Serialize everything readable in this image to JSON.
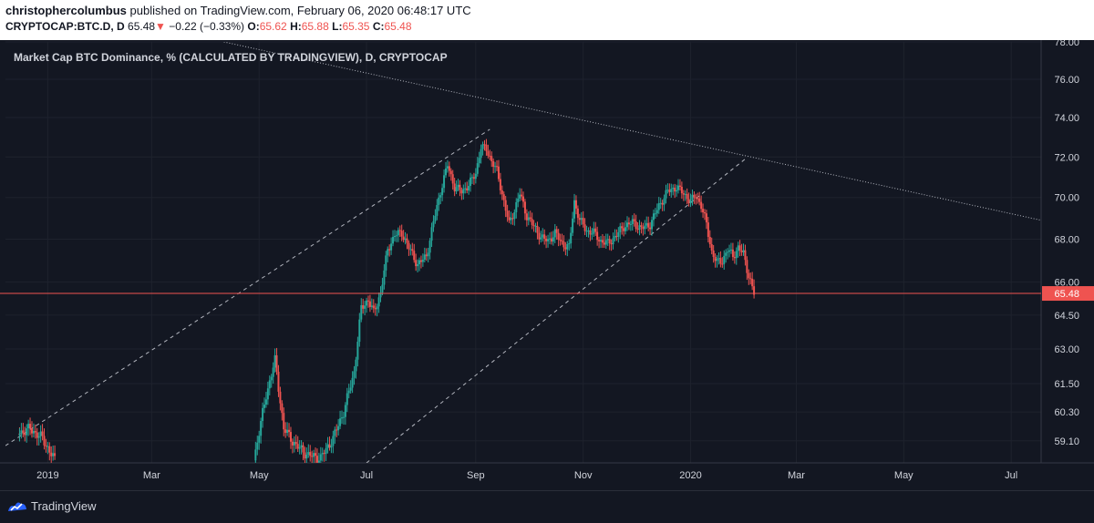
{
  "header": {
    "author": "christophercolumbus",
    "published_text": "published on TradingView.com, February 06, 2020 06:48:17 UTC",
    "symbol": "CRYPTOCAP:BTC.D, D",
    "last": "65.48",
    "change": "−0.22 (−0.33%)",
    "open_label": "O:",
    "open": "65.62",
    "high_label": "H:",
    "high": "65.88",
    "low_label": "L:",
    "low": "65.35",
    "close_label": "C:",
    "close": "65.48"
  },
  "legend_title": "Market Cap BTC Dominance, % (CALCULATED BY TRADINGVIEW), D, CRYPTOCAP",
  "footer": {
    "brand": "TradingView"
  },
  "colors": {
    "background": "#131722",
    "up": "#26a69a",
    "down": "#ef5350",
    "price_line": "#ef5350",
    "text": "#d1d4dc"
  },
  "chart_data": {
    "type": "candlestick",
    "title": "Market Cap BTC Dominance, % (CALCULATED BY TRADINGVIEW), D, CRYPTOCAP",
    "x_tick_labels": [
      "2019",
      "Mar",
      "May",
      "Jul",
      "Sep",
      "Nov",
      "2020",
      "Mar",
      "May",
      "Jul"
    ],
    "x_tick_dates": [
      "2019-01-01",
      "2019-03-01",
      "2019-05-01",
      "2019-07-01",
      "2019-09-01",
      "2019-11-01",
      "2020-01-01",
      "2020-03-01",
      "2020-05-01",
      "2020-07-01"
    ],
    "y_tick_labels": [
      "78.00",
      "76.00",
      "74.00",
      "72.00",
      "70.00",
      "68.00",
      "66.00",
      "64.50",
      "63.00",
      "61.50",
      "60.30",
      "59.10"
    ],
    "y_scale": "log",
    "x_range": [
      "2018-12-08",
      "2020-07-18"
    ],
    "y_range": [
      58.2,
      78.0
    ],
    "current_price": {
      "value": 65.48,
      "label": "65.48"
    },
    "grid": true,
    "series": [
      {
        "points": [
          [
            "2018-12-15",
            59.4
          ],
          [
            "2018-12-22",
            59.6
          ],
          [
            "2018-12-29",
            59.2
          ],
          [
            "2019-01-05",
            58.3
          ],
          [
            "2019-04-28",
            58.3
          ],
          [
            "2019-05-05",
            61.0
          ],
          [
            "2019-05-10",
            62.5
          ],
          [
            "2019-05-15",
            59.6
          ],
          [
            "2019-05-22",
            58.9
          ],
          [
            "2019-05-29",
            58.5
          ],
          [
            "2019-06-05",
            58.4
          ],
          [
            "2019-06-12",
            59.2
          ],
          [
            "2019-06-18",
            60.3
          ],
          [
            "2019-06-24",
            62.0
          ],
          [
            "2019-06-28",
            64.8
          ],
          [
            "2019-07-02",
            65.2
          ],
          [
            "2019-07-05",
            64.6
          ],
          [
            "2019-07-09",
            65.5
          ],
          [
            "2019-07-13",
            67.5
          ],
          [
            "2019-07-17",
            68.2
          ],
          [
            "2019-07-21",
            68.3
          ],
          [
            "2019-07-25",
            67.6
          ],
          [
            "2019-07-30",
            66.8
          ],
          [
            "2019-08-04",
            67.2
          ],
          [
            "2019-08-08",
            68.8
          ],
          [
            "2019-08-12",
            70.3
          ],
          [
            "2019-08-16",
            71.6
          ],
          [
            "2019-08-20",
            70.5
          ],
          [
            "2019-08-24",
            70.3
          ],
          [
            "2019-08-28",
            70.6
          ],
          [
            "2019-09-01",
            71.2
          ],
          [
            "2019-09-04",
            72.5
          ],
          [
            "2019-09-07",
            72.4
          ],
          [
            "2019-09-10",
            71.8
          ],
          [
            "2019-09-13",
            71.3
          ],
          [
            "2019-09-17",
            69.8
          ],
          [
            "2019-09-20",
            68.7
          ],
          [
            "2019-09-23",
            69.4
          ],
          [
            "2019-09-26",
            70.2
          ],
          [
            "2019-09-30",
            69.1
          ],
          [
            "2019-10-04",
            68.6
          ],
          [
            "2019-10-08",
            68.1
          ],
          [
            "2019-10-12",
            67.9
          ],
          [
            "2019-10-16",
            68.3
          ],
          [
            "2019-10-20",
            67.8
          ],
          [
            "2019-10-24",
            67.6
          ],
          [
            "2019-10-27",
            69.8
          ],
          [
            "2019-10-30",
            68.9
          ],
          [
            "2019-11-03",
            68.4
          ],
          [
            "2019-11-07",
            68.3
          ],
          [
            "2019-11-11",
            67.9
          ],
          [
            "2019-11-15",
            67.8
          ],
          [
            "2019-11-19",
            68.1
          ],
          [
            "2019-11-24",
            68.6
          ],
          [
            "2019-11-29",
            68.8
          ],
          [
            "2019-12-04",
            68.5
          ],
          [
            "2019-12-09",
            68.7
          ],
          [
            "2019-12-14",
            69.6
          ],
          [
            "2019-12-19",
            70.3
          ],
          [
            "2019-12-24",
            70.5
          ],
          [
            "2019-12-28",
            70.2
          ],
          [
            "2020-01-01",
            69.8
          ],
          [
            "2020-01-04",
            70.1
          ],
          [
            "2020-01-07",
            69.6
          ],
          [
            "2020-01-10",
            68.7
          ],
          [
            "2020-01-13",
            67.4
          ],
          [
            "2020-01-16",
            66.9
          ],
          [
            "2020-01-19",
            67.0
          ],
          [
            "2020-01-22",
            67.5
          ],
          [
            "2020-01-25",
            67.2
          ],
          [
            "2020-01-28",
            67.6
          ],
          [
            "2020-01-31",
            67.3
          ],
          [
            "2020-02-03",
            66.3
          ],
          [
            "2020-02-06",
            65.48
          ]
        ]
      }
    ],
    "trendlines": [
      {
        "style": "dashed",
        "from": [
          "2018-12-08",
          58.9
        ],
        "to": [
          "2019-09-09",
          73.4
        ]
      },
      {
        "style": "dashed",
        "from": [
          "2019-07-01",
          58.2
        ],
        "to": [
          "2020-02-01",
          71.9
        ]
      },
      {
        "style": "dotted",
        "from": [
          "2019-04-11",
          78.0
        ],
        "to": [
          "2020-07-18",
          68.9
        ]
      }
    ]
  }
}
